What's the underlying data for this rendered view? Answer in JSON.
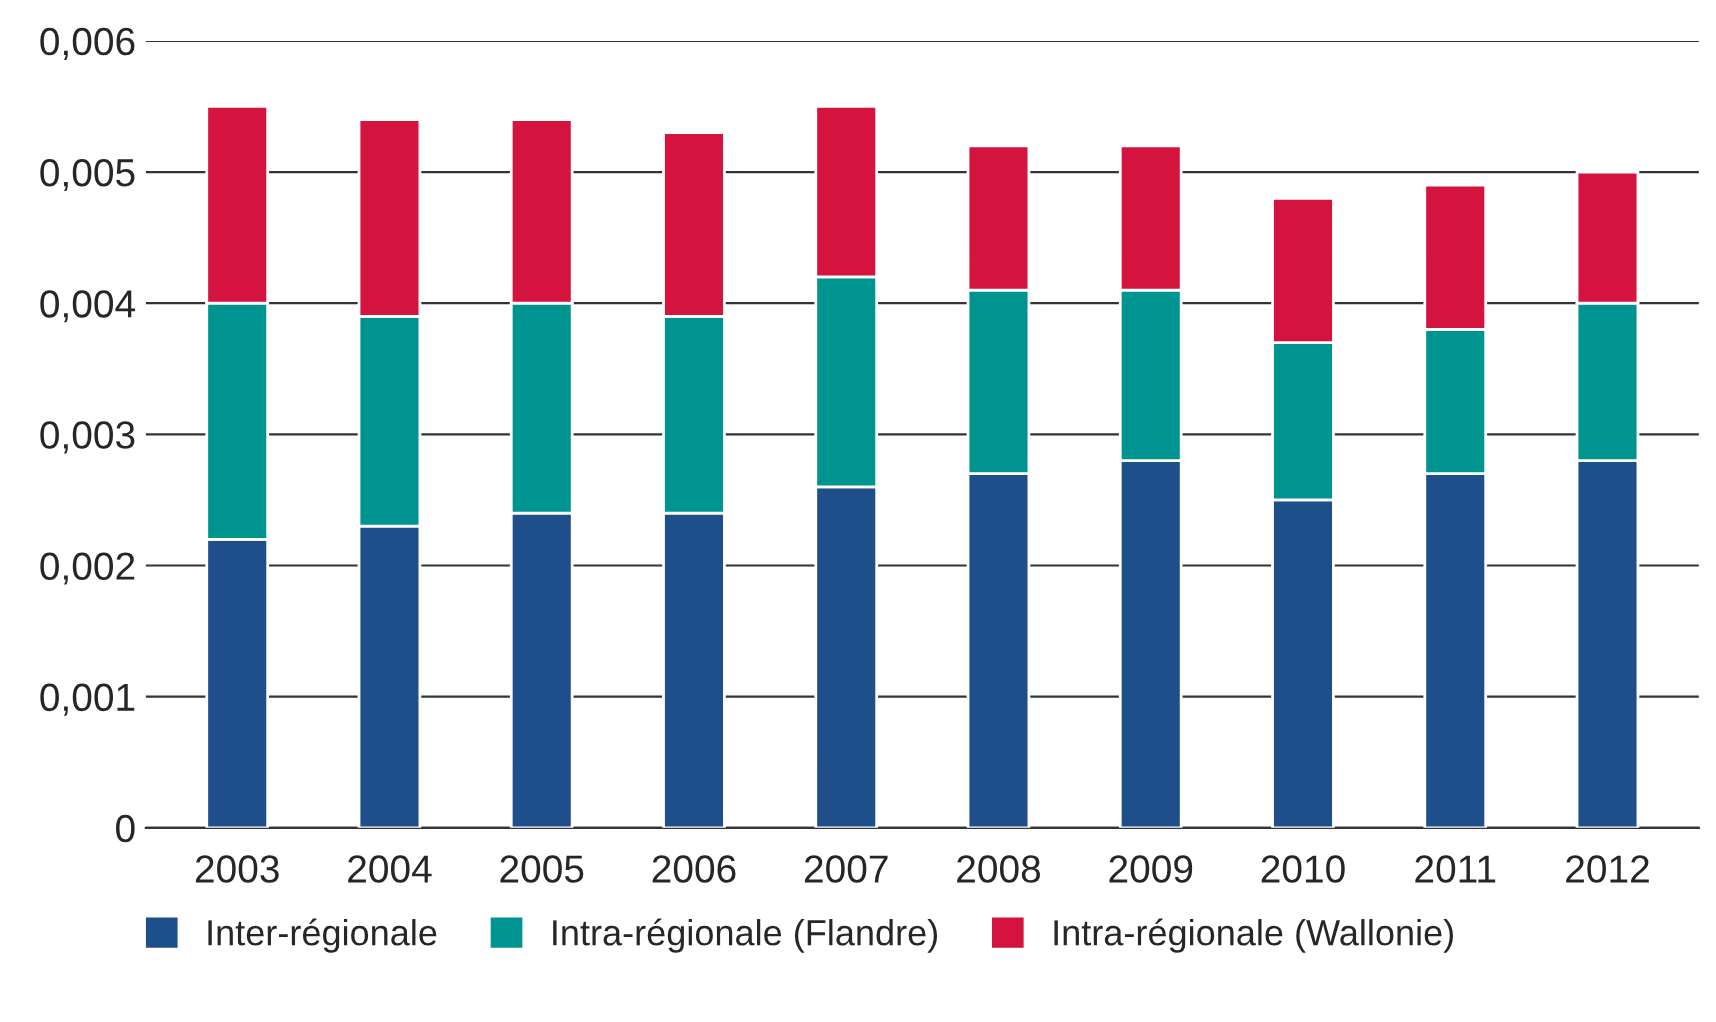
{
  "chart_data": {
    "type": "bar",
    "stacked": true,
    "categories": [
      "2003",
      "2004",
      "2005",
      "2006",
      "2007",
      "2008",
      "2009",
      "2010",
      "2011",
      "2012"
    ],
    "series": [
      {
        "name": "Inter-régionale",
        "color": "#1e4f8a",
        "values": [
          0.0022,
          0.0023,
          0.0024,
          0.0024,
          0.0026,
          0.0027,
          0.0028,
          0.0025,
          0.0027,
          0.0028
        ]
      },
      {
        "name": "Intra-régionale (Flandre)",
        "color": "#009490",
        "values": [
          0.0018,
          0.0016,
          0.0016,
          0.0015,
          0.0016,
          0.0014,
          0.0013,
          0.0012,
          0.0011,
          0.0012
        ]
      },
      {
        "name": "Intra-régionale (Wallonie)",
        "color": "#d4143f",
        "values": [
          0.0015,
          0.0015,
          0.0014,
          0.0014,
          0.0013,
          0.0011,
          0.0011,
          0.0011,
          0.0011,
          0.001
        ]
      }
    ],
    "ylim": [
      0,
      0.006
    ],
    "yticks": [
      {
        "value": 0,
        "label": "0"
      },
      {
        "value": 0.001,
        "label": "0,001"
      },
      {
        "value": 0.002,
        "label": "0,002"
      },
      {
        "value": 0.003,
        "label": "0,003"
      },
      {
        "value": 0.004,
        "label": "0,004"
      },
      {
        "value": 0.005,
        "label": "0,005"
      },
      {
        "value": 0.006,
        "label": "0,006"
      }
    ],
    "grid": "y",
    "legend": "bottom"
  }
}
